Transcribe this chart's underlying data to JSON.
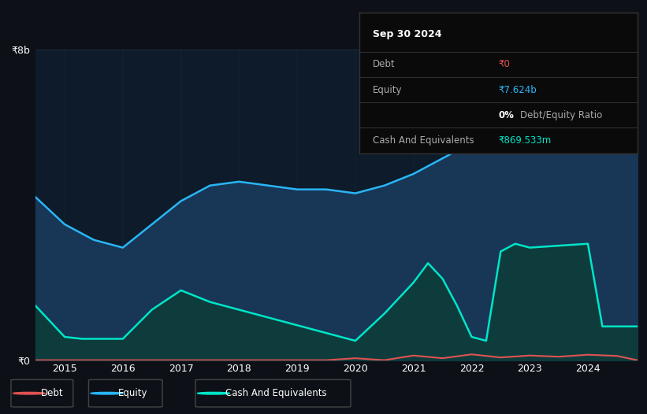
{
  "bg_color": "#0d1117",
  "chart_bg": "#0d1b2a",
  "ylim": [
    0,
    8000000000
  ],
  "ytick_labels": [
    "₹0",
    "₹8b"
  ],
  "xlim_start": 2014.5,
  "xlim_end": 2024.85,
  "xticks": [
    2015,
    2016,
    2017,
    2018,
    2019,
    2020,
    2021,
    2022,
    2023,
    2024
  ],
  "grid_color": "#1e2d3d",
  "equity_color": "#29b6f6",
  "equity_fill": "#1a3a5c",
  "cash_color": "#00e5c8",
  "cash_fill": "#0d3d3a",
  "debt_color": "#e05252",
  "tooltip_bg": "#0a0a0a",
  "tooltip_border": "#333333",
  "tooltip_title": "Sep 30 2024",
  "tooltip_rows": [
    {
      "label": "Debt",
      "value": "₹0",
      "value_color": "#e05252"
    },
    {
      "label": "Equity",
      "value": "₹7.624b",
      "value_color": "#29b6f6"
    },
    {
      "label": "",
      "value": "0%",
      "value_suffix": " Debt/Equity Ratio",
      "value_color": "#ffffff"
    },
    {
      "label": "Cash And Equivalents",
      "value": "₹869.533m",
      "value_color": "#00e5c8"
    }
  ],
  "equity_years": [
    2014.5,
    2015.0,
    2015.5,
    2016.0,
    2016.5,
    2017.0,
    2017.5,
    2018.0,
    2018.5,
    2019.0,
    2019.5,
    2020.0,
    2020.5,
    2021.0,
    2021.5,
    2022.0,
    2022.5,
    2023.0,
    2023.5,
    2024.0,
    2024.5,
    2024.85
  ],
  "equity_vals": [
    4200000000,
    3500000000,
    3100000000,
    2900000000,
    3500000000,
    4100000000,
    4500000000,
    4600000000,
    4500000000,
    4400000000,
    4400000000,
    4300000000,
    4500000000,
    4800000000,
    5200000000,
    5600000000,
    5900000000,
    6200000000,
    6500000000,
    6800000000,
    7300000000,
    7624000000
  ],
  "cash_years": [
    2014.5,
    2015.0,
    2015.3,
    2016.0,
    2016.5,
    2017.0,
    2017.5,
    2018.0,
    2018.5,
    2019.0,
    2019.5,
    2020.0,
    2020.5,
    2021.0,
    2021.25,
    2021.5,
    2021.75,
    2022.0,
    2022.25,
    2022.5,
    2022.75,
    2023.0,
    2023.5,
    2024.0,
    2024.25,
    2024.5,
    2024.85
  ],
  "cash_vals": [
    1400000000,
    600000000,
    550000000,
    550000000,
    1300000000,
    1800000000,
    1500000000,
    1300000000,
    1100000000,
    900000000,
    700000000,
    500000000,
    1200000000,
    2000000000,
    2500000000,
    2100000000,
    1400000000,
    600000000,
    500000000,
    2800000000,
    3000000000,
    2900000000,
    2950000000,
    3000000000,
    870000000,
    870000000,
    870000000
  ],
  "debt_years": [
    2014.5,
    2019.5,
    2020.0,
    2020.5,
    2021.0,
    2021.5,
    2022.0,
    2022.5,
    2023.0,
    2023.5,
    2024.0,
    2024.5,
    2024.85
  ],
  "debt_vals": [
    0,
    0,
    50000000,
    0,
    120000000,
    50000000,
    150000000,
    70000000,
    120000000,
    90000000,
    140000000,
    110000000,
    0
  ]
}
